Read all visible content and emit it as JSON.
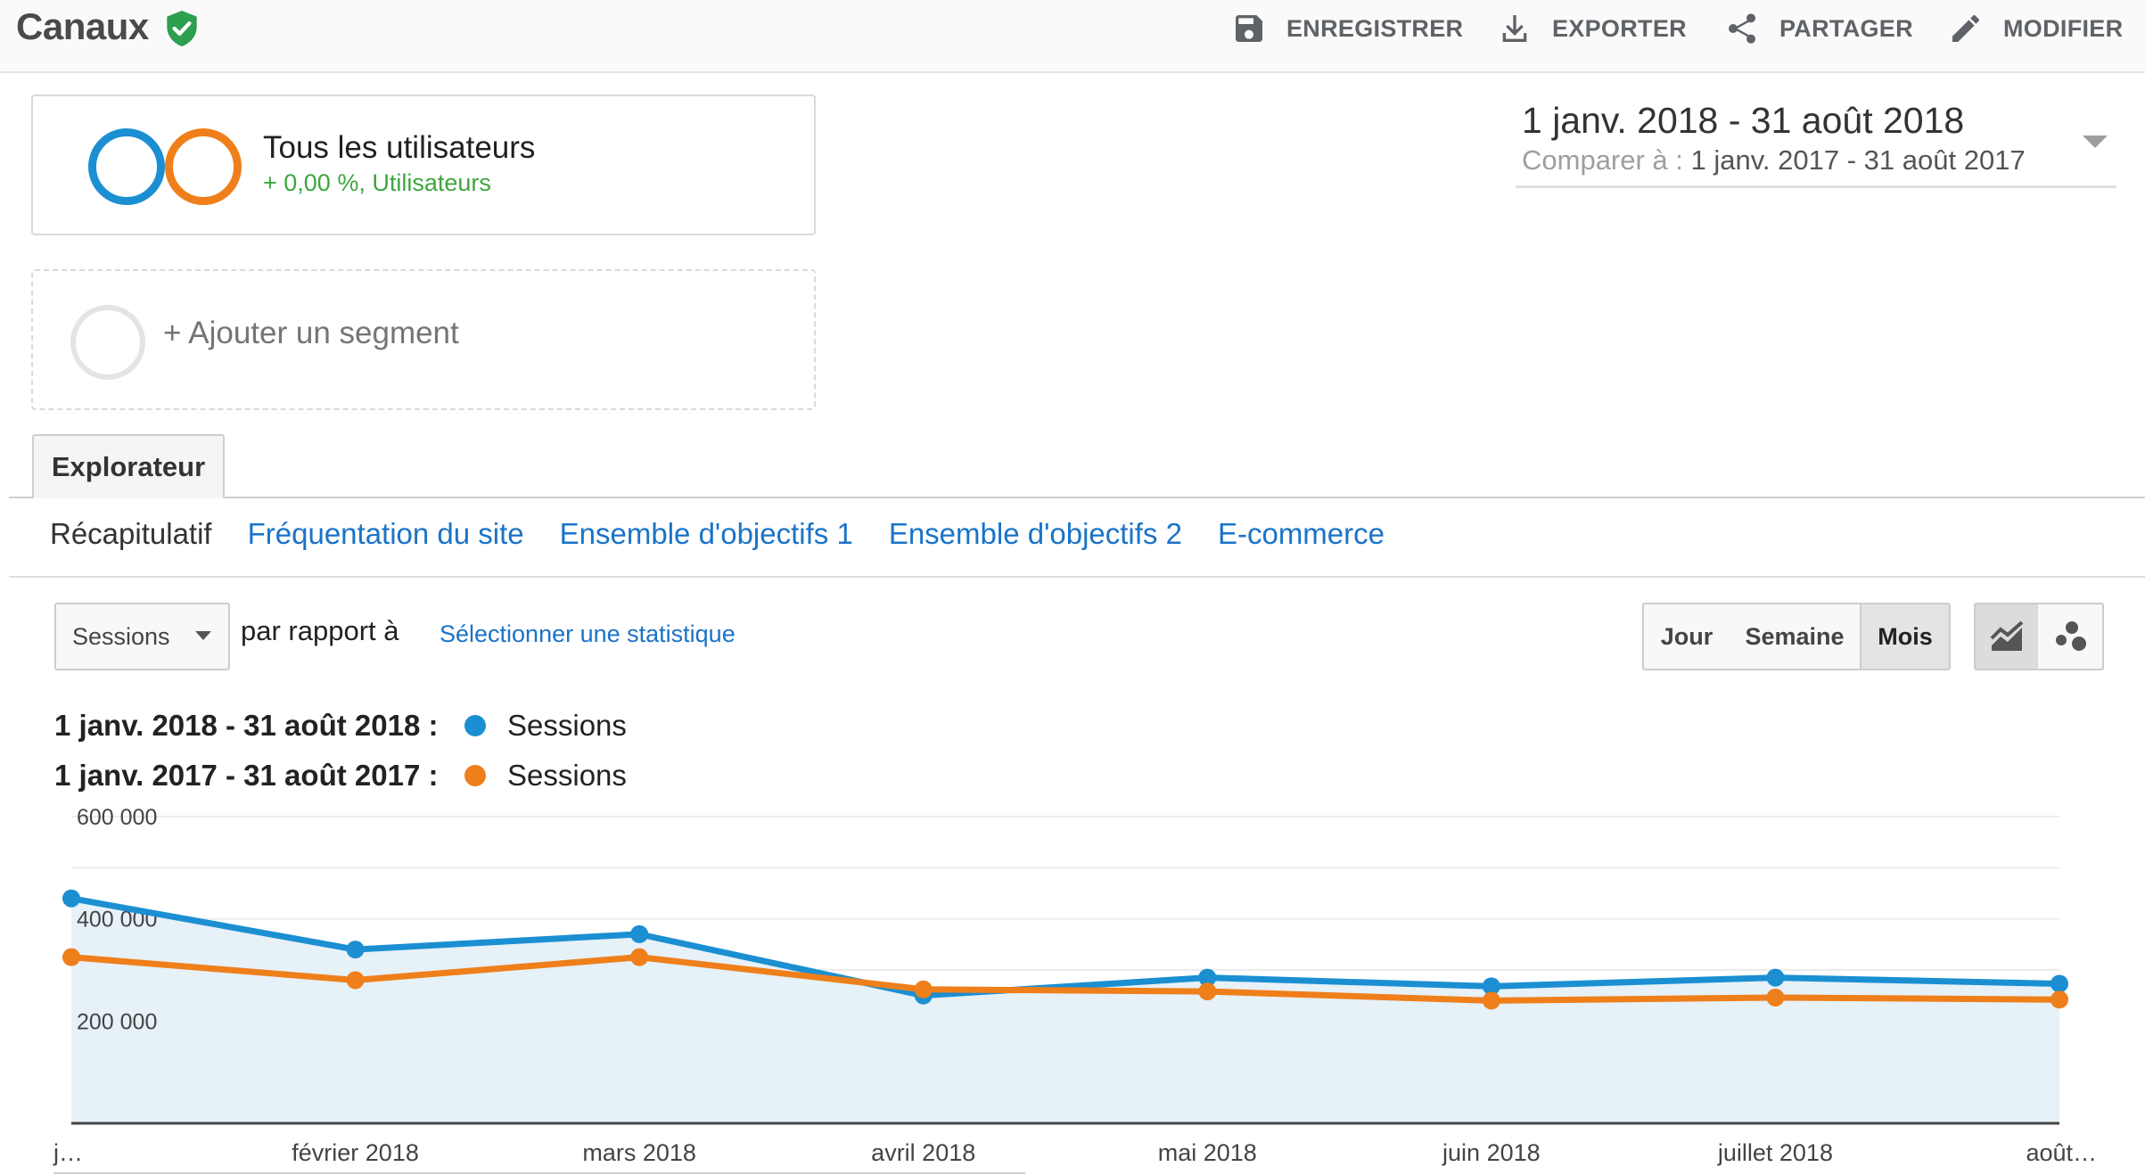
{
  "header": {
    "title": "Canaux",
    "actions": {
      "save": "ENREGISTRER",
      "export": "EXPORTER",
      "share": "PARTAGER",
      "edit": "MODIFIER"
    }
  },
  "segments": {
    "primary": {
      "name": "Tous les utilisateurs",
      "subtitle": "+ 0,00 %, Utilisateurs"
    },
    "add_label": "+ Ajouter un segment"
  },
  "date_range": {
    "current": "1 janv. 2018 - 31 août 2018",
    "compare_prefix": "Comparer à : ",
    "compare": "1 janv. 2017 - 31 août 2017"
  },
  "tabs": {
    "explorer": "Explorateur"
  },
  "subtabs": [
    "Récapitulatif",
    "Fréquentation du site",
    "Ensemble d'objectifs 1",
    "Ensemble d'objectifs 2",
    "E-commerce"
  ],
  "controls": {
    "metric": "Sessions",
    "versus_label": "par rapport à",
    "select_metric": "Sélectionner une statistique",
    "periods": [
      "Jour",
      "Semaine",
      "Mois"
    ],
    "active_period": "Mois",
    "view_icons": [
      "line-chart-icon",
      "motion-chart-icon"
    ]
  },
  "legend": [
    {
      "range": "1 janv. 2018 - 31 août 2018 :",
      "metric": "Sessions",
      "color": "#1b8fd2"
    },
    {
      "range": "1 janv. 2017 - 31 août 2017 :",
      "metric": "Sessions",
      "color": "#ef7f1a"
    }
  ],
  "colors": {
    "accent_blue": "#1b8fd2",
    "accent_orange": "#ef7f1a",
    "positive_green": "#3ea63e",
    "link": "#1a73c8"
  },
  "chart_data": {
    "type": "line",
    "categories": [
      "j…",
      "février 2018",
      "mars 2018",
      "avril 2018",
      "mai 2018",
      "juin 2018",
      "juillet 2018",
      "août…"
    ],
    "series": [
      {
        "name": "Sessions",
        "period": "1 janv. 2018 - 31 août 2018",
        "values": [
          440000,
          340000,
          370000,
          250000,
          285000,
          268000,
          285000,
          273000
        ]
      },
      {
        "name": "Sessions",
        "period": "1 janv. 2017 - 31 août 2017",
        "values": [
          325000,
          280000,
          325000,
          262000,
          258000,
          240000,
          246000,
          242000
        ]
      }
    ],
    "y_ticks": [
      "600 000",
      "400 000",
      "200 000"
    ],
    "ylim": [
      0,
      600000
    ],
    "grid": true,
    "area_fill_first_series": true
  }
}
